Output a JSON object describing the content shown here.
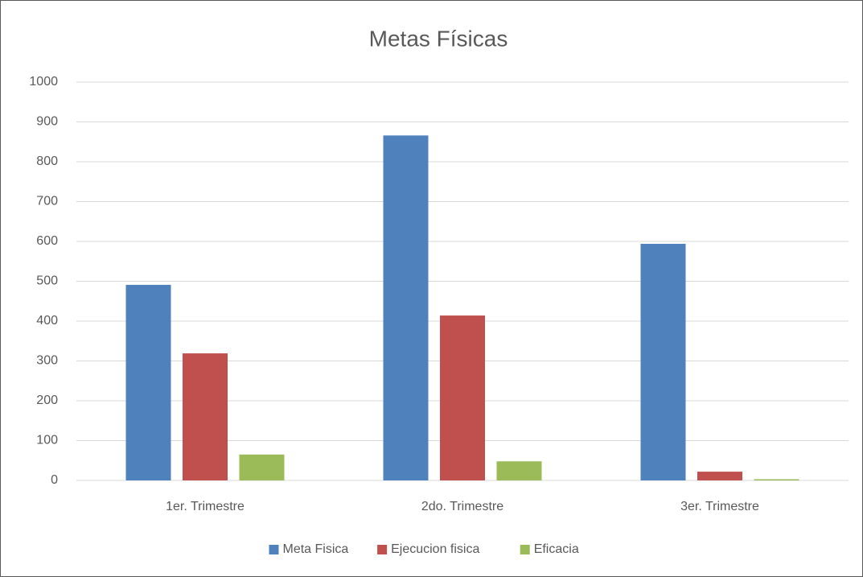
{
  "chart_data": {
    "type": "bar",
    "title": "Metas Físicas",
    "categories": [
      "1er. Trimestre",
      "2do. Trimestre",
      "3er. Trimestre"
    ],
    "series": [
      {
        "name": "Meta Fisica",
        "color": "#4f81bd",
        "values": [
          491,
          866,
          594
        ]
      },
      {
        "name": "Ejecucion fisica",
        "color": "#c0504d",
        "values": [
          319,
          414,
          22
        ]
      },
      {
        "name": "Eficacia",
        "color": "#9bbb59",
        "values": [
          65,
          48,
          3
        ]
      }
    ],
    "ylim": [
      0,
      1000
    ],
    "yticks": [
      0,
      100,
      200,
      300,
      400,
      500,
      600,
      700,
      800,
      900,
      1000
    ],
    "grid": true,
    "legend": "bottom"
  }
}
